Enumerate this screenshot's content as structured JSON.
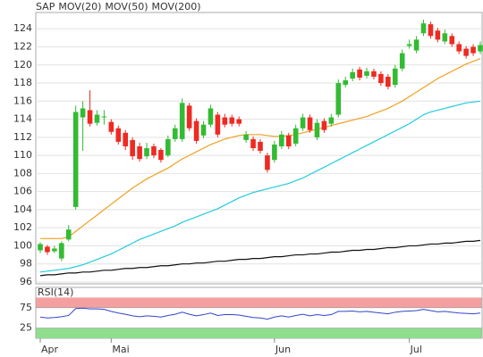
{
  "chart_data": [
    {
      "type": "candlestick",
      "name": "SAP",
      "color": "#e03a2a",
      "up_color": "#33bb33",
      "down_color": "#ee2a22",
      "categories": [
        "Apr",
        null,
        null,
        null,
        null,
        null,
        null,
        null,
        null,
        null,
        "Mai",
        null,
        null,
        null,
        null,
        null,
        null,
        null,
        null,
        null,
        null,
        null,
        null,
        null,
        null,
        null,
        null,
        null,
        null,
        null,
        null,
        null,
        null,
        "Jun",
        null,
        null,
        null,
        null,
        null,
        null,
        null,
        null,
        null,
        null,
        null,
        null,
        null,
        null,
        null,
        null,
        null,
        null,
        "Jul",
        null,
        null,
        null,
        null,
        null,
        null,
        null,
        null,
        null,
        null
      ],
      "open": [
        99.5,
        99.9,
        99.4,
        98.6,
        100.7,
        104.3,
        114.2,
        115.0,
        113.6,
        114.2,
        113.7,
        113.0,
        112.5,
        111.7,
        111.0,
        109.9,
        111.0,
        110.6,
        110.0,
        111.8,
        111.8,
        115.5,
        113.8,
        112.2,
        113.4,
        114.5,
        114.2,
        114.2,
        114.0,
        111.7,
        111.8,
        111.5,
        110.0,
        109.5,
        111.0,
        112.2,
        111.3,
        113.0,
        114.2,
        112.0,
        113.8,
        113.5,
        114.5,
        117.8,
        118.5,
        119.5,
        118.8,
        119.3,
        119.0,
        118.7,
        117.8,
        119.6,
        122.1,
        121.6,
        123.5,
        124.5,
        123.8,
        122.6,
        123.2,
        122.3,
        121.8,
        122.0,
        121.5
      ],
      "high": [
        100.4,
        100.1,
        100.0,
        100.5,
        102.3,
        115.5,
        116.0,
        117.2,
        115.0,
        115.0,
        114.0,
        113.3,
        112.8,
        112.0,
        111.4,
        111.4,
        111.3,
        110.8,
        112.2,
        113.4,
        116.3,
        115.8,
        114.1,
        113.8,
        115.6,
        114.8,
        114.6,
        114.5,
        114.3,
        112.7,
        112.1,
        111.8,
        110.3,
        111.6,
        112.7,
        112.5,
        113.4,
        114.6,
        114.5,
        114.0,
        114.1,
        114.6,
        118.4,
        118.7,
        119.6,
        119.8,
        119.7,
        119.6,
        119.3,
        119.0,
        120.0,
        121.7,
        122.8,
        123.2,
        125.0,
        124.8,
        124.1,
        123.9,
        123.5,
        122.6,
        122.1,
        122.3,
        122.6
      ],
      "low": [
        99.2,
        99.0,
        99.2,
        98.3,
        100.5,
        104.0,
        110.5,
        113.2,
        113.3,
        113.4,
        112.3,
        111.2,
        110.6,
        109.5,
        109.3,
        109.6,
        109.7,
        109.2,
        109.8,
        111.5,
        111.5,
        112.7,
        111.3,
        111.9,
        113.1,
        112.0,
        113.1,
        113.2,
        113.2,
        111.4,
        110.5,
        110.2,
        108.1,
        109.2,
        110.7,
        110.7,
        111.0,
        112.7,
        112.5,
        111.7,
        112.5,
        113.2,
        114.2,
        117.5,
        118.2,
        118.3,
        118.5,
        118.4,
        117.7,
        117.3,
        117.5,
        119.3,
        121.8,
        121.3,
        123.2,
        122.9,
        122.5,
        122.3,
        122.0,
        121.2,
        120.7,
        121.0,
        121.2
      ],
      "close": [
        100.2,
        99.3,
        99.7,
        100.3,
        101.8,
        114.8,
        115.2,
        113.5,
        114.5,
        114.3,
        112.6,
        111.5,
        111.0,
        109.9,
        109.6,
        110.8,
        110.0,
        109.5,
        111.8,
        113.0,
        115.8,
        113.0,
        111.6,
        113.4,
        115.2,
        112.3,
        113.4,
        113.5,
        113.5,
        112.3,
        110.8,
        110.5,
        108.4,
        111.2,
        112.3,
        111.0,
        113.0,
        114.2,
        112.8,
        113.6,
        112.8,
        114.2,
        118.0,
        118.3,
        119.2,
        118.6,
        119.3,
        118.7,
        118.0,
        117.6,
        119.6,
        121.3,
        122.3,
        122.8,
        124.6,
        123.2,
        122.8,
        123.5,
        122.3,
        121.5,
        121.0,
        121.3,
        122.2
      ],
      "series": [
        {
          "name": "MOV(20)",
          "color": "#f0a020",
          "values": [
            100.8,
            100.8,
            100.8,
            100.8,
            101.0,
            101.6,
            102.2,
            102.8,
            103.4,
            104.0,
            104.6,
            105.2,
            105.8,
            106.4,
            106.9,
            107.4,
            107.8,
            108.2,
            108.6,
            109.1,
            109.6,
            110.0,
            110.4,
            110.8,
            111.2,
            111.5,
            111.8,
            112.0,
            112.2,
            112.3,
            112.3,
            112.3,
            112.2,
            112.1,
            112.1,
            112.2,
            112.3,
            112.5,
            112.7,
            112.9,
            113.1,
            113.3,
            113.5,
            113.7,
            113.9,
            114.1,
            114.3,
            114.6,
            114.9,
            115.2,
            115.6,
            116.0,
            116.5,
            117.0,
            117.5,
            118.0,
            118.5,
            118.9,
            119.3,
            119.7,
            120.1,
            120.4,
            120.7
          ]
        },
        {
          "name": "MOV(50)",
          "color": "#22ccdd",
          "values": [
            97.1,
            97.2,
            97.3,
            97.4,
            97.5,
            97.7,
            97.9,
            98.2,
            98.5,
            98.8,
            99.1,
            99.5,
            99.9,
            100.3,
            100.7,
            101.0,
            101.3,
            101.6,
            101.9,
            102.2,
            102.6,
            102.9,
            103.2,
            103.5,
            103.8,
            104.1,
            104.5,
            104.9,
            105.3,
            105.6,
            105.9,
            106.1,
            106.3,
            106.5,
            106.7,
            106.9,
            107.2,
            107.5,
            107.9,
            108.3,
            108.7,
            109.1,
            109.5,
            109.9,
            110.3,
            110.7,
            111.1,
            111.5,
            111.9,
            112.3,
            112.7,
            113.1,
            113.5,
            114.0,
            114.5,
            114.8,
            115.0,
            115.2,
            115.4,
            115.6,
            115.8,
            115.9,
            116.0
          ]
        },
        {
          "name": "MOV(200)",
          "color": "#111111",
          "values": [
            96.7,
            96.8,
            96.8,
            96.9,
            97.0,
            97.0,
            97.1,
            97.1,
            97.2,
            97.3,
            97.3,
            97.4,
            97.5,
            97.5,
            97.6,
            97.6,
            97.7,
            97.8,
            97.8,
            97.9,
            98.0,
            98.0,
            98.1,
            98.1,
            98.2,
            98.3,
            98.3,
            98.4,
            98.5,
            98.5,
            98.6,
            98.6,
            98.7,
            98.8,
            98.8,
            98.9,
            99.0,
            99.0,
            99.1,
            99.1,
            99.2,
            99.3,
            99.3,
            99.4,
            99.5,
            99.5,
            99.6,
            99.6,
            99.7,
            99.8,
            99.8,
            99.9,
            100.0,
            100.0,
            100.1,
            100.2,
            100.2,
            100.3,
            100.3,
            100.4,
            100.5,
            100.5,
            100.6
          ]
        }
      ],
      "ylim": [
        95.8,
        125.8
      ],
      "yticks": [
        96,
        98,
        100,
        102,
        104,
        106,
        108,
        110,
        112,
        114,
        116,
        118,
        120,
        122,
        124
      ],
      "grid": true
    },
    {
      "type": "line",
      "title": "RSI(14)",
      "color": "#3344cc",
      "values": [
        52,
        50,
        51,
        53,
        56,
        73,
        74,
        72,
        72,
        71,
        66,
        62,
        59,
        55,
        53,
        55,
        54,
        52,
        56,
        59,
        64,
        59,
        55,
        58,
        62,
        56,
        58,
        58,
        57,
        54,
        51,
        50,
        47,
        52,
        55,
        52,
        56,
        59,
        55,
        58,
        56,
        58,
        66,
        66,
        67,
        65,
        66,
        64,
        62,
        60,
        64,
        66,
        67,
        68,
        71,
        68,
        65,
        66,
        64,
        62,
        61,
        60,
        62
      ],
      "ylim": [
        0,
        125
      ],
      "yticks": [
        25,
        75
      ],
      "bands": [
        {
          "from": 75,
          "to": 100,
          "color": "#f4a0a0"
        },
        {
          "from": 0,
          "to": 25,
          "color": "#8ede8e"
        }
      ]
    }
  ]
}
